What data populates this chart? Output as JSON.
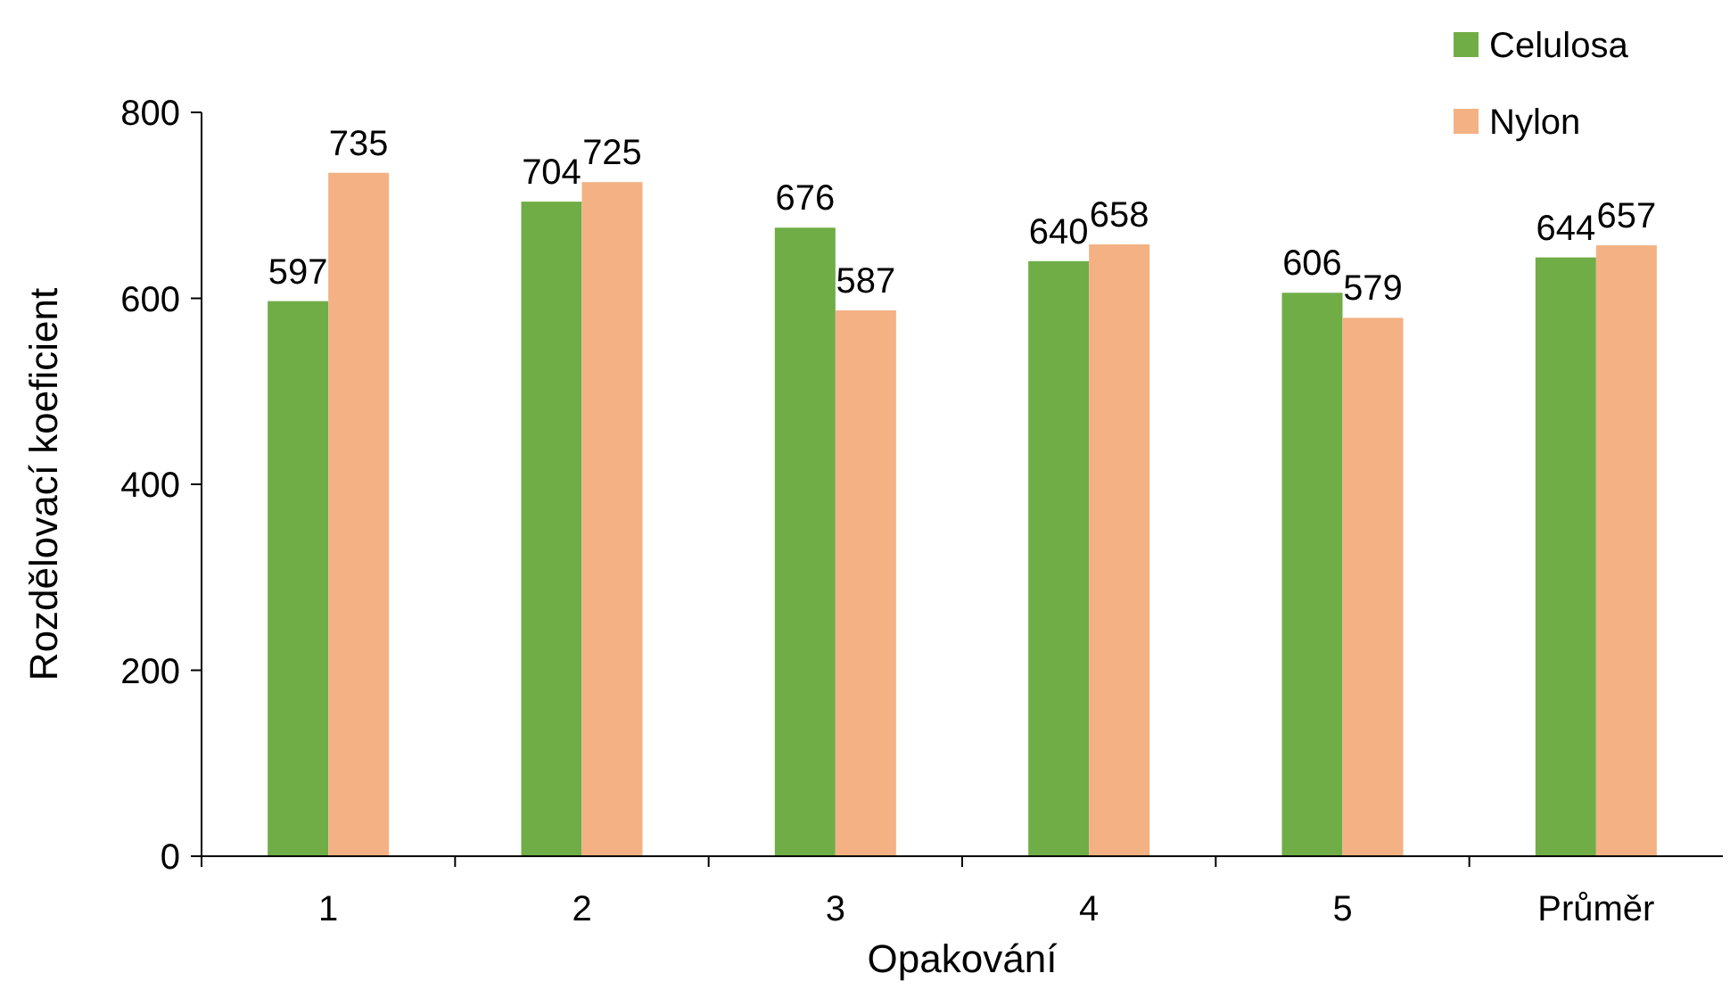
{
  "chart_data": {
    "type": "bar",
    "xlabel": "Opakování",
    "ylabel": "Rozdělovací koeficient",
    "categories": [
      "1",
      "2",
      "3",
      "4",
      "5",
      "Průměr"
    ],
    "series": [
      {
        "name": "Celulosa",
        "color": "#70ad47",
        "values": [
          597,
          704,
          676,
          640,
          606,
          644
        ]
      },
      {
        "name": "Nylon",
        "color": "#f4b183",
        "values": [
          735,
          725,
          587,
          658,
          579,
          657
        ]
      }
    ],
    "ylim": [
      0,
      800
    ],
    "yticks": [
      0,
      200,
      400,
      600,
      800
    ],
    "grid": false,
    "legend": "top right",
    "data_labels": true
  }
}
